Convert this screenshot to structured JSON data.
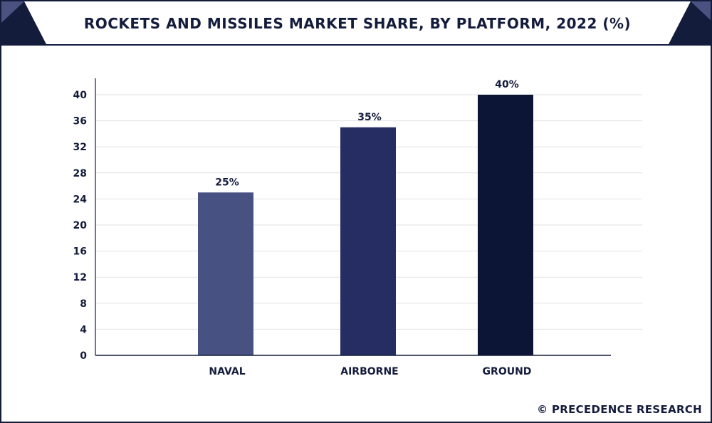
{
  "chart_data": {
    "type": "bar",
    "title": "ROCKETS AND MISSILES MARKET SHARE, BY PLATFORM, 2022 (%)",
    "xlabel": "",
    "ylabel": "",
    "categories": [
      "NAVAL",
      "AIRBORNE",
      "GROUND"
    ],
    "values": [
      25,
      35,
      40
    ],
    "data_labels": [
      "25%",
      "35%",
      "40%"
    ],
    "bar_colors": [
      "#485282",
      "#252d63",
      "#0c1535"
    ],
    "ylim": [
      0,
      40
    ],
    "yticks": [
      0,
      4,
      8,
      12,
      16,
      20,
      24,
      28,
      32,
      36,
      40
    ],
    "grid": true,
    "legend": "none"
  },
  "watermark": "© PRECEDENCE RESEARCH",
  "colors": {
    "frame": "#141c3c",
    "accent": "#4a5282",
    "text": "#141c3c",
    "grid": "#e2e2e6"
  }
}
